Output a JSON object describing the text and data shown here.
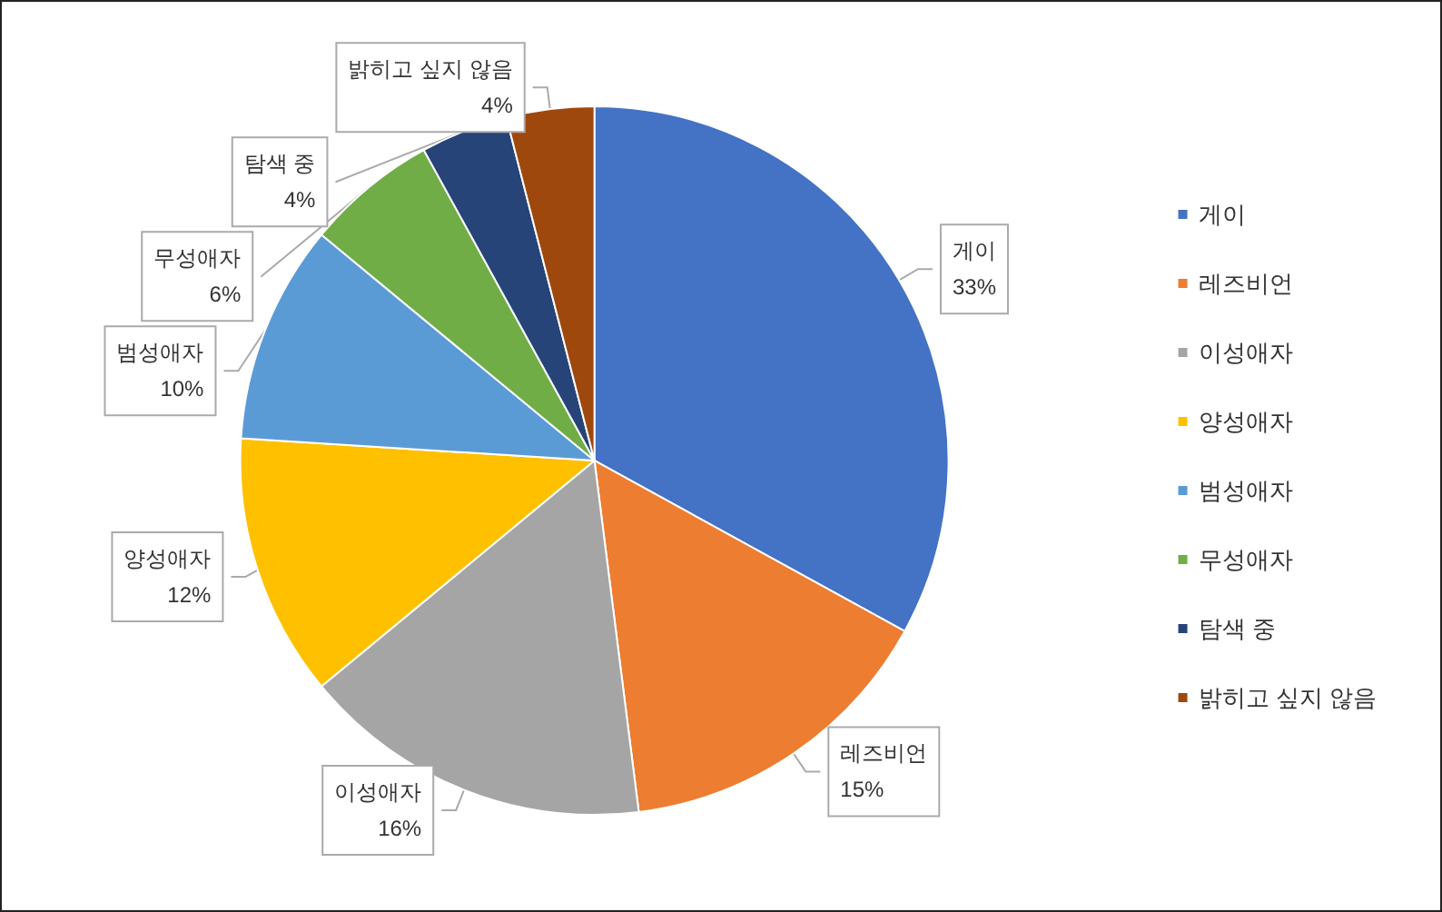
{
  "chart_data": {
    "type": "pie",
    "categories": [
      "게이",
      "레즈비언",
      "이성애자",
      "양성애자",
      "범성애자",
      "무성애자",
      "탐색 중",
      "밝히고 싶지 않음"
    ],
    "values": [
      33,
      15,
      16,
      12,
      10,
      6,
      4,
      4
    ],
    "colors": [
      "#4472c4",
      "#ed7d31",
      "#a5a5a5",
      "#ffc000",
      "#5b9bd5",
      "#70ad47",
      "#264478",
      "#9e480e"
    ],
    "value_labels": [
      "33%",
      "15%",
      "16%",
      "12%",
      "10%",
      "6%",
      "4%",
      "4%"
    ],
    "legend": "right"
  }
}
